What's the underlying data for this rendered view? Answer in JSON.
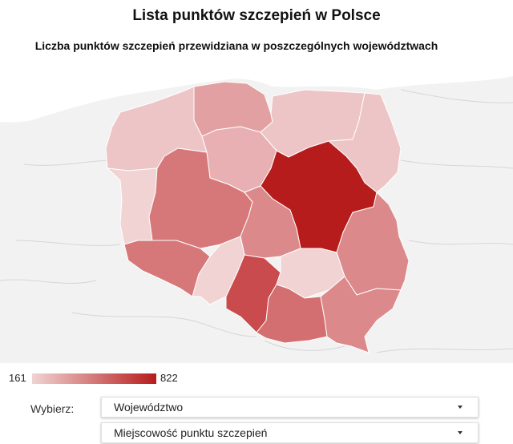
{
  "header": {
    "title": "Lista punktów szczepień w Polsce",
    "subtitle": "Liczba punktów szczepień przewidziana w poszczególnych województwach"
  },
  "map": {
    "region": "Poland",
    "basemap_color": "#f2f2f2",
    "border_color": "#cfcfcf",
    "scale": {
      "min": 161,
      "max": 822,
      "min_color": "#f1d3d3",
      "max_color": "#b71c1c"
    },
    "regions": [
      {
        "name": "pomorskie",
        "color": "#e2a0a2"
      },
      {
        "name": "zachodniopomorskie",
        "color": "#eec5c6"
      },
      {
        "name": "warminsko-mazurskie",
        "color": "#eec5c6"
      },
      {
        "name": "podlaskie",
        "color": "#eec5c6"
      },
      {
        "name": "kujawsko-pomorskie",
        "color": "#e8b0b2"
      },
      {
        "name": "lubuskie",
        "color": "#f1d3d3"
      },
      {
        "name": "wielkopolskie",
        "color": "#d6787a"
      },
      {
        "name": "mazowieckie",
        "color": "#b71c1c"
      },
      {
        "name": "lodzkie",
        "color": "#dc898b"
      },
      {
        "name": "lubelskie",
        "color": "#dc898b"
      },
      {
        "name": "dolnoslaskie",
        "color": "#d6787a"
      },
      {
        "name": "opolskie",
        "color": "#f1d3d3"
      },
      {
        "name": "slaskie",
        "color": "#c94b4d"
      },
      {
        "name": "swietokrzyskie",
        "color": "#f1d3d3"
      },
      {
        "name": "malopolskie",
        "color": "#d46f71"
      },
      {
        "name": "podkarpackie",
        "color": "#dc898b"
      }
    ]
  },
  "legend": {
    "min_label": "161",
    "max_label": "822"
  },
  "controls": {
    "select_label": "Wybierz:",
    "voivodeship_placeholder": "Województwo",
    "locality_placeholder": "Miejscowość punktu szczepień"
  }
}
